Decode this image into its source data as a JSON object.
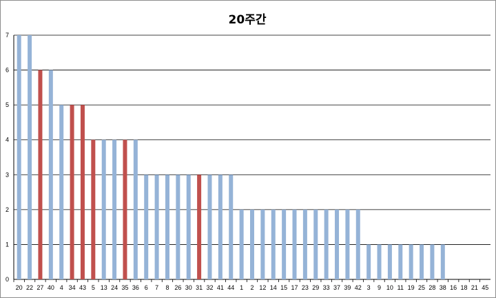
{
  "chart_data": {
    "type": "bar",
    "title": "20주간",
    "xlabel": "",
    "ylabel": "",
    "ylim": [
      0,
      7
    ],
    "yticks": [
      0,
      1,
      2,
      3,
      4,
      5,
      6,
      7
    ],
    "grid": true,
    "legend": "none",
    "categories": [
      "20",
      "22",
      "27",
      "40",
      "4",
      "34",
      "43",
      "5",
      "13",
      "24",
      "35",
      "36",
      "6",
      "7",
      "8",
      "26",
      "30",
      "31",
      "32",
      "41",
      "44",
      "1",
      "2",
      "12",
      "14",
      "15",
      "17",
      "23",
      "29",
      "33",
      "37",
      "39",
      "42",
      "3",
      "9",
      "10",
      "11",
      "19",
      "25",
      "28",
      "38",
      "16",
      "18",
      "21",
      "45"
    ],
    "values": [
      7,
      7,
      6,
      6,
      5,
      5,
      5,
      4,
      4,
      4,
      4,
      4,
      3,
      3,
      3,
      3,
      3,
      3,
      3,
      3,
      3,
      2,
      2,
      2,
      2,
      2,
      2,
      2,
      2,
      2,
      2,
      2,
      2,
      1,
      1,
      1,
      1,
      1,
      1,
      1,
      1,
      0,
      0,
      0,
      0
    ],
    "highlighted": [
      "27",
      "34",
      "43",
      "5",
      "35",
      "31"
    ],
    "colors": {
      "default": "#95b3d7",
      "highlight": "#c0504d",
      "grid": "#000000"
    }
  }
}
